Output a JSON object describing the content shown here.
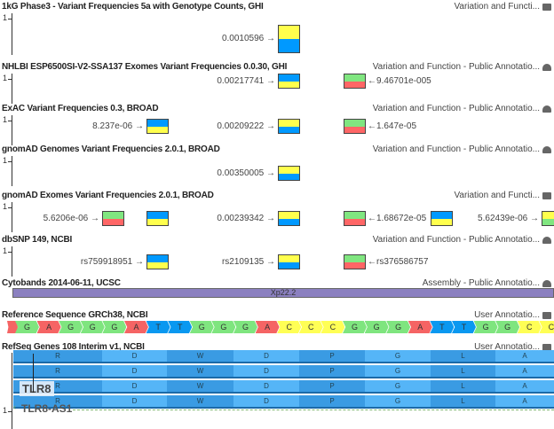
{
  "colors": {
    "A": "#f56464",
    "G": "#7fe57f",
    "T": "#0a98f0",
    "C": "#ffff55",
    "yellow": "#ffff4d",
    "blue": "#0099ff",
    "green": "#80e680",
    "red": "#ff6666",
    "cytoband": "#8b80c0"
  },
  "tracks": [
    {
      "title": "1kG Phase3 - Variant Frequencies 5a with Genotype Counts, GHI",
      "category": "Variation and Functi...",
      "icon": "folder-icon",
      "axis": "1",
      "variants": [
        {
          "label": "0.0010596",
          "side": "left",
          "colors": [
            "yellow",
            "blue"
          ],
          "col": 313
        }
      ]
    },
    {
      "title": "NHLBI ESP6500SI-V2-SSA137 Exomes Variant Frequencies 0.0.30, GHI",
      "category": "Variation and Function - Public Annotatio...",
      "icon": "cloud-icon",
      "axis": "1",
      "variants": [
        {
          "label": "0.00217741",
          "side": "left",
          "colors": [
            "blue",
            "yellow"
          ],
          "col": 313
        },
        {
          "label": "9.46701e-005",
          "side": "right",
          "colors": [
            "green",
            "red"
          ],
          "col": 387
        }
      ]
    },
    {
      "title": "ExAC Variant Frequencies 0.3, BROAD",
      "category": "Variation and Function - Public Annotatio...",
      "icon": "cloud-icon",
      "axis": "1",
      "variants": [
        {
          "label": "8.237e-06",
          "side": "left",
          "colors": [
            "blue",
            "yellow"
          ],
          "col": 165
        },
        {
          "label": "0.00209222",
          "side": "left",
          "colors": [
            "yellow",
            "blue"
          ],
          "col": 313
        },
        {
          "label": "1.647e-05",
          "side": "right",
          "colors": [
            "green",
            "red"
          ],
          "col": 387
        }
      ]
    },
    {
      "title": "gnomAD Genomes Variant Frequencies 2.0.1, BROAD",
      "category": "Variation and Function - Public Annotatio...",
      "icon": "cloud-icon",
      "axis": "1",
      "variants": [
        {
          "label": "0.00350005",
          "side": "left",
          "colors": [
            "yellow",
            "blue"
          ],
          "col": 313
        }
      ]
    },
    {
      "title": "gnomAD Exomes Variant Frequencies 2.0.1, BROAD",
      "category": "Variation and Functi...",
      "icon": "folder-icon",
      "axis": "1",
      "variants": [
        {
          "label": "5.6206e-06",
          "side": "left",
          "colors": [
            "green",
            "red"
          ],
          "col": 115
        },
        {
          "label": "",
          "side": "none",
          "colors": [
            "blue",
            "yellow"
          ],
          "col": 165
        },
        {
          "label": "0.00239342",
          "side": "left",
          "colors": [
            "yellow",
            "blue"
          ],
          "col": 313
        },
        {
          "label": "1.68672e-05",
          "side": "right",
          "colors": [
            "green",
            "red"
          ],
          "col": 387
        },
        {
          "label": "",
          "side": "none",
          "colors": [
            "blue",
            "yellow"
          ],
          "col": 485
        },
        {
          "label": "5.62439e-06",
          "side": "left",
          "colors": [
            "yellow",
            "green"
          ],
          "col": 610
        }
      ]
    },
    {
      "title": "dbSNP 149, NCBI",
      "category": "Variation and Function - Public Annotatio...",
      "icon": "cloud-icon",
      "axis": "1",
      "variants": [
        {
          "label": "rs759918951",
          "side": "left",
          "colors": [
            "blue",
            "yellow"
          ],
          "col": 165
        },
        {
          "label": "rs2109135",
          "side": "left",
          "colors": [
            "yellow",
            "blue"
          ],
          "col": 313
        },
        {
          "label": "rs376586757",
          "side": "right",
          "colors": [
            "green",
            "red"
          ],
          "col": 387
        }
      ]
    }
  ],
  "cytobands": {
    "title": "Cytobands 2014-06-11, UCSC",
    "category": "Assembly - Public Annotatio...",
    "icon": "cloud-icon",
    "band": "Xp22.2"
  },
  "reference": {
    "title": "Reference Sequence GRCh38, NCBI",
    "category": "User Annotatio...",
    "icon": "folder-icon",
    "sequence": [
      "G",
      "A",
      "G",
      "G",
      "G",
      "A",
      "T",
      "T",
      "G",
      "G",
      "G",
      "A",
      "C",
      "C",
      "C",
      "G",
      "G",
      "G",
      "A",
      "T",
      "T",
      "G",
      "G",
      "C",
      "C"
    ]
  },
  "refseq": {
    "title": "RefSeq Genes 108 Interim v1, NCBI",
    "category": "User Annotatio...",
    "icon": "folder-icon",
    "axis": "1",
    "amino_acids": [
      "R",
      "D",
      "W",
      "D",
      "P",
      "G",
      "L",
      "A"
    ],
    "gene": "TLR8",
    "antisense": "TLR8-AS1"
  }
}
